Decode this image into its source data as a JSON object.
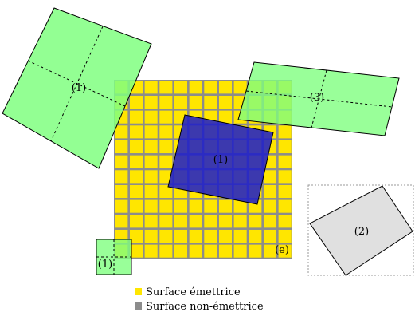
{
  "labels": {
    "left_green_large": "(1)",
    "blue_center": "(1)",
    "right_green": "(3)",
    "gray_square": "(2)",
    "bottom_left_green": "(1)",
    "grid_corner": "(e)"
  },
  "legend": {
    "emitting_label": "Surface émettrice",
    "non_emitting_label": "Surface non-émettrice"
  },
  "colors": {
    "emitting": "#ffe600",
    "non_emitting": "#8c8c8c",
    "green": "#80ff80",
    "blue": "#1a1acc",
    "gray_fill": "#e0e0e0",
    "page": "#ffffff"
  },
  "grid": {
    "rows": 12,
    "cols": 12
  }
}
